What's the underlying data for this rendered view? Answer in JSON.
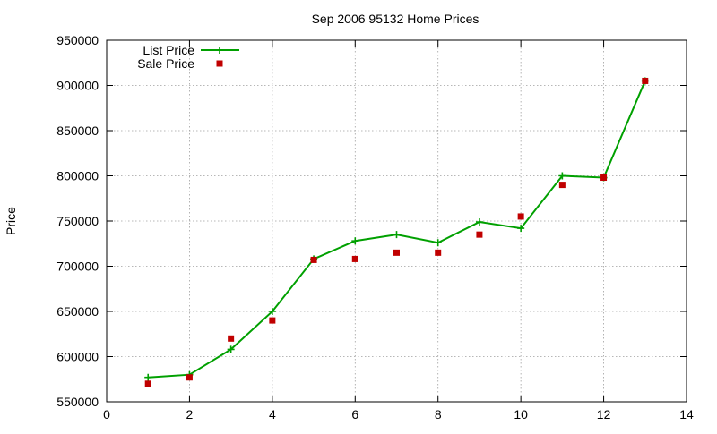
{
  "chart_data": {
    "type": "line",
    "title": "Sep 2006 95132 Home Prices",
    "xlabel": "",
    "ylabel": "Price",
    "xlim": [
      0,
      14
    ],
    "ylim": [
      550000,
      950000
    ],
    "xticks": [
      0,
      2,
      4,
      6,
      8,
      10,
      12,
      14
    ],
    "yticks": [
      550000,
      600000,
      650000,
      700000,
      750000,
      800000,
      850000,
      900000,
      950000
    ],
    "grid": true,
    "legend_position": "top-left",
    "series": [
      {
        "name": "List Price",
        "style": "linespoints",
        "marker": "plus",
        "color": "#00a000",
        "x": [
          1,
          2,
          3,
          4,
          5,
          6,
          7,
          8,
          9,
          10,
          11,
          12,
          13
        ],
        "y": [
          577000,
          580000,
          608000,
          650000,
          708000,
          728000,
          735000,
          726000,
          749000,
          742000,
          800000,
          798000,
          905000
        ]
      },
      {
        "name": "Sale Price",
        "style": "points",
        "marker": "square",
        "color": "#c00000",
        "x": [
          1,
          2,
          3,
          4,
          5,
          6,
          7,
          8,
          9,
          10,
          11,
          12,
          13
        ],
        "y": [
          570000,
          577000,
          620000,
          640000,
          707000,
          708000,
          715000,
          715000,
          735000,
          755000,
          790000,
          798000,
          905000
        ]
      }
    ]
  }
}
